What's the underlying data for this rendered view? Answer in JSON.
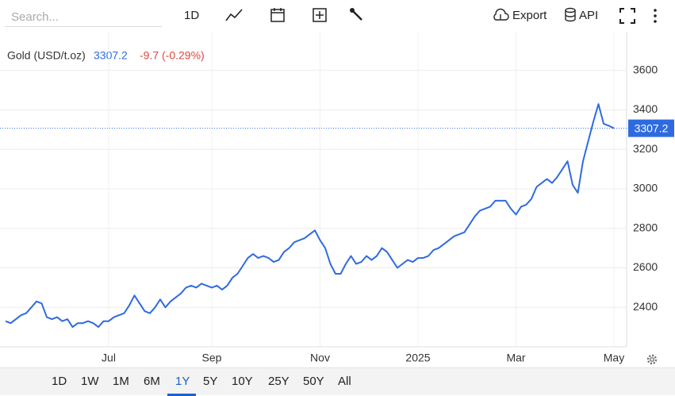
{
  "search_placeholder": "Search...",
  "toolbar": {
    "interval": "1D",
    "export": "Export",
    "api": "API"
  },
  "ranges": [
    "1D",
    "1W",
    "1M",
    "6M",
    "1Y",
    "5Y",
    "10Y",
    "25Y",
    "50Y",
    "All"
  ],
  "active_range": 4,
  "chart_data": {
    "type": "line",
    "change": "-9.7 (-0.29%)",
    "categories": [
      null,
      null,
      null,
      null,
      null,
      null,
      null,
      null,
      null,
      null,
      null,
      null,
      null,
      null,
      null,
      null,
      null,
      null,
      null,
      null,
      "Jul",
      null,
      null,
      null,
      null,
      null,
      null,
      null,
      null,
      null,
      null,
      null,
      null,
      null,
      null,
      null,
      null,
      null,
      null,
      null,
      "Sep",
      null,
      null,
      null,
      null,
      null,
      null,
      null,
      null,
      null,
      null,
      null,
      null,
      null,
      null,
      null,
      null,
      null,
      null,
      null,
      null,
      "Nov",
      null,
      null,
      null,
      null,
      null,
      null,
      null,
      null,
      null,
      null,
      null,
      null,
      null,
      null,
      null,
      null,
      null,
      null,
      "2025",
      null,
      null,
      null,
      null,
      null,
      null,
      null,
      null,
      null,
      null,
      null,
      null,
      null,
      null,
      null,
      null,
      null,
      null,
      "Mar",
      null,
      null,
      null,
      null,
      null,
      null,
      null,
      null,
      null,
      null,
      null,
      null,
      null,
      null,
      null,
      null,
      null,
      null,
      "May"
    ],
    "series": [
      {
        "name": "Gold (USD/t.oz)",
        "color": "#2f6be0",
        "values": [
          2330,
          2320,
          2340,
          2360,
          2370,
          2400,
          2430,
          2420,
          2350,
          2340,
          2350,
          2330,
          2340,
          2300,
          2320,
          2320,
          2330,
          2320,
          2300,
          2330,
          2330,
          2350,
          2360,
          2370,
          2410,
          2460,
          2420,
          2380,
          2370,
          2400,
          2440,
          2400,
          2430,
          2450,
          2470,
          2500,
          2510,
          2500,
          2520,
          2510,
          2500,
          2510,
          2490,
          2510,
          2550,
          2570,
          2610,
          2650,
          2670,
          2650,
          2660,
          2650,
          2630,
          2640,
          2680,
          2700,
          2730,
          2740,
          2750,
          2770,
          2790,
          2740,
          2700,
          2620,
          2570,
          2570,
          2620,
          2660,
          2620,
          2630,
          2660,
          2640,
          2660,
          2700,
          2680,
          2640,
          2600,
          2620,
          2640,
          2630,
          2650,
          2650,
          2660,
          2690,
          2700,
          2720,
          2740,
          2760,
          2770,
          2780,
          2820,
          2860,
          2890,
          2900,
          2910,
          2940,
          2940,
          2940,
          2900,
          2870,
          2910,
          2920,
          2950,
          3010,
          3030,
          3050,
          3030,
          3060,
          3100,
          3140,
          3020,
          2980,
          3140,
          3240,
          3340,
          3430,
          3330,
          3320,
          3307.2
        ]
      }
    ],
    "ylim": [
      2200,
      3760
    ],
    "yticks": [
      2400,
      2600,
      2800,
      3000,
      3200,
      3400,
      3600
    ],
    "grid": true
  }
}
